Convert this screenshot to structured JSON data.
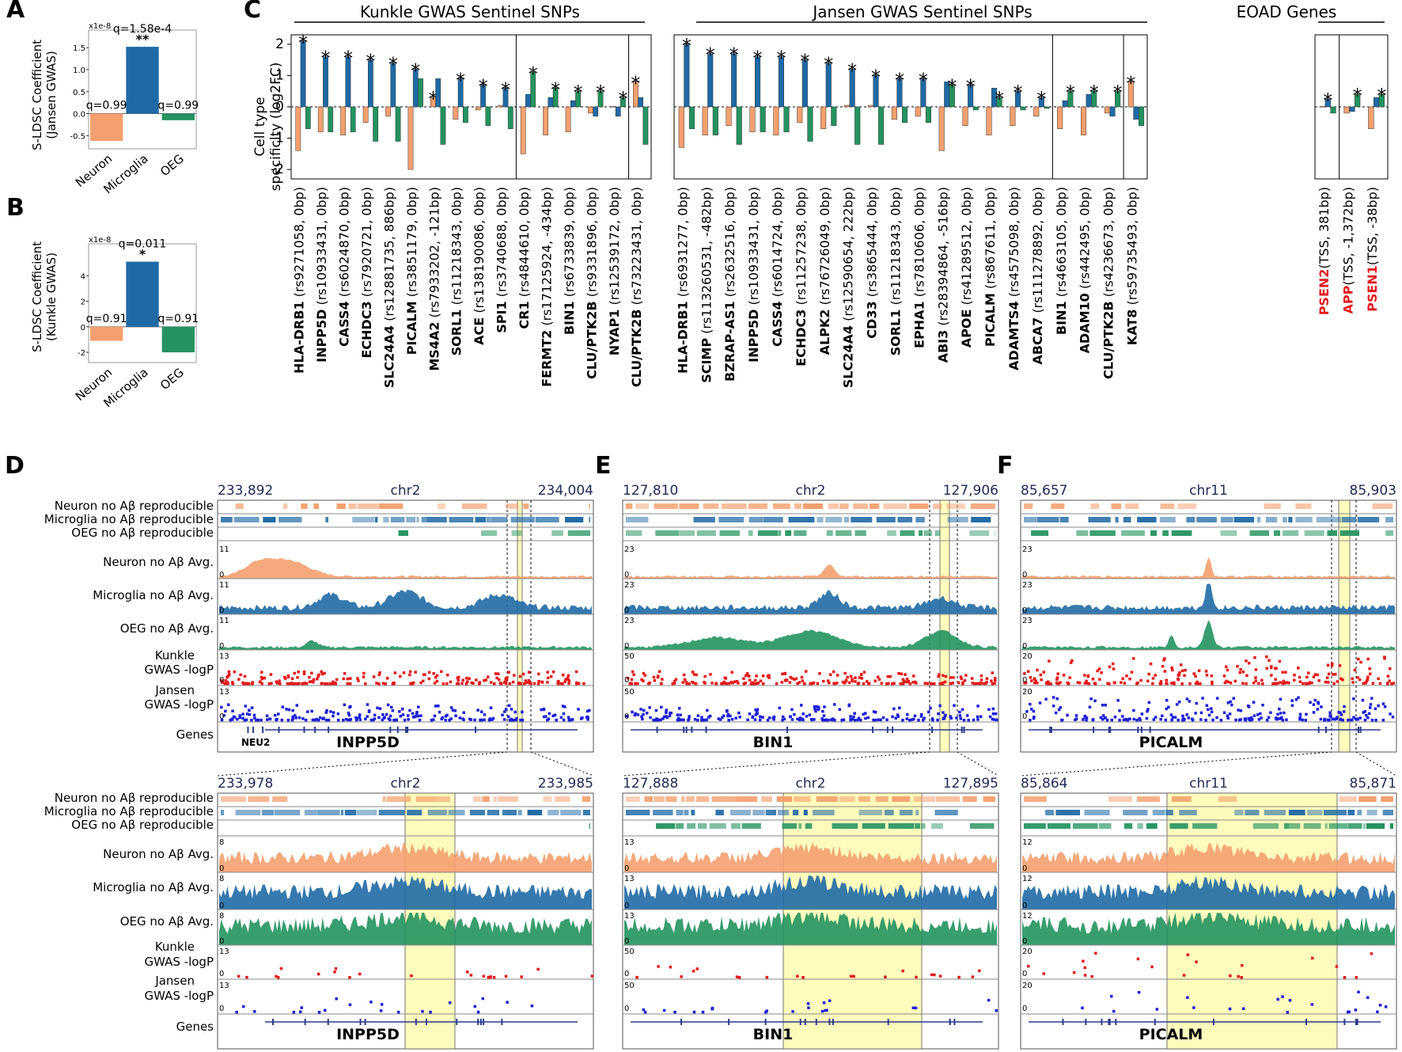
{
  "colors": {
    "neuron": "#f4a06e",
    "microglia": "#1f6aa5",
    "oeg": "#23935f",
    "kunkle": "#e31a1c",
    "jansen": "#1f1fd6",
    "highlight": "#fffbbd",
    "red_text": "#e31a1c"
  },
  "panels": {
    "a": "A",
    "b": "B",
    "c": "C",
    "d": "D",
    "e": "E",
    "f": "F"
  },
  "panel_a": {
    "scale_label": "x1e-8",
    "ylabel_line1": "S-LDSC Coefficient",
    "ylabel_line2": "(Jansen GWAS)",
    "ticks": [
      "1.5",
      "1.0",
      "0.5",
      "0.0",
      "-0.5"
    ]
  },
  "panel_b": {
    "scale_label": "x1e-8",
    "ylabel_line1": "S-LDSC Coefficient",
    "ylabel_line2": "(Kunkle GWAS)",
    "ticks": [
      "4",
      "2",
      "0",
      "-2"
    ]
  },
  "panel_c": {
    "ylabel_line1": "Cell type",
    "ylabel_line2": "specificity (log2FC)",
    "ticks": [
      "2",
      "1",
      "0",
      "-1",
      "-2"
    ],
    "header_kunkle": "Kunkle GWAS Sentinel SNPs",
    "header_jansen": "Jansen GWAS Sentinel SNPs",
    "header_eoad": "EOAD Genes"
  },
  "tracks": {
    "neuron_rep": "Neuron no Aβ reproducible",
    "microglia_rep": "Microglia no Aβ reproducible",
    "oeg_rep": "OEG no Aβ reproducible",
    "neuron_avg": "Neuron no Aβ Avg.",
    "microglia_avg": "Microglia no Aβ Avg.",
    "oeg_avg": "OEG no Aβ Avg.",
    "kunkle_l1": "Kunkle",
    "kunkle_l2": "GWAS -logP",
    "jansen_l1": "Jansen",
    "jansen_l2": "GWAS -logP",
    "genes": "Genes"
  },
  "browser": {
    "d": {
      "chrom": "chr2",
      "start": "233,892",
      "end": "234,004",
      "zoom_start": "233,978",
      "zoom_end": "233,985",
      "scale_avg": "11",
      "scale_zoom_avg": "8",
      "scale_gwas": "13",
      "scale_zoom_gwas": "13",
      "gene_main": "INPP5D",
      "gene_extra": "NEU2",
      "zero": "0"
    },
    "e": {
      "chrom": "chr2",
      "start": "127,810",
      "end": "127,906",
      "zoom_start": "127,888",
      "zoom_end": "127,895",
      "scale_avg": "23",
      "scale_zoom_avg": "13",
      "scale_gwas": "50",
      "scale_zoom_gwas": "50",
      "gene_main": "BIN1",
      "zero": "0"
    },
    "f": {
      "chrom": "chr11",
      "start": "85,657",
      "end": "85,903",
      "zoom_start": "85,864",
      "zoom_end": "85,871",
      "scale_avg": "23",
      "scale_zoom_avg": "12",
      "scale_gwas": "20",
      "scale_zoom_gwas": "20",
      "zero": "0",
      "gene_main": "PICALM"
    }
  },
  "chart_data": [
    {
      "id": "A",
      "type": "bar",
      "title": "",
      "ylabel": "S-LDSC Coefficient (Jansen GWAS)",
      "y_scale_note": "x1e-8",
      "categories": [
        "Neuron",
        "Microglia",
        "OEG"
      ],
      "values": [
        -0.62,
        1.52,
        -0.15
      ],
      "annotations": [
        "q=0.99",
        "q=1.58e-4",
        "q=0.99"
      ],
      "stars": [
        "",
        "**",
        ""
      ],
      "ylim": [
        -0.8,
        1.9
      ],
      "yticks": [
        -0.5,
        0.0,
        0.5,
        1.0,
        1.5
      ]
    },
    {
      "id": "B",
      "type": "bar",
      "title": "",
      "ylabel": "S-LDSC Coefficient (Kunkle GWAS)",
      "y_scale_note": "x1e-8",
      "categories": [
        "Neuron",
        "Microglia",
        "OEG"
      ],
      "values": [
        -1.1,
        5.1,
        -2.0
      ],
      "annotations": [
        "q=0.91",
        "q=0.011",
        "q=0.91"
      ],
      "stars": [
        "",
        "*",
        ""
      ],
      "ylim": [
        -2.8,
        6.5
      ],
      "yticks": [
        -2,
        0,
        2,
        4
      ]
    },
    {
      "id": "C",
      "type": "bar",
      "ylabel": "Cell type specificity (log2FC)",
      "ylim": [
        -2.3,
        2.3
      ],
      "yticks": [
        -2,
        -1,
        0,
        1,
        2
      ],
      "series_names": [
        "Neuron",
        "Microglia",
        "OEG"
      ],
      "groups": [
        {
          "section": "Kunkle",
          "snps": [
            {
              "gene": "HLA-DRB1",
              "snp": " (rs9271058, 0bp)",
              "red": false,
              "values": [
                -1.4,
                2.1,
                -0.7
              ],
              "star": 1
            },
            {
              "gene": "INPP5D",
              "snp": " (rs10933431, 0bp)",
              "red": false,
              "values": [
                -0.8,
                1.6,
                -0.8
              ],
              "star": 1
            },
            {
              "gene": "CASS4",
              "snp": " (rs6024870, 0bp)",
              "red": false,
              "values": [
                -0.9,
                1.6,
                -0.8
              ],
              "star": 1
            },
            {
              "gene": "ECHDC3",
              "snp": " (rs7920721, 0bp)",
              "red": false,
              "values": [
                -0.5,
                1.5,
                -1.1
              ],
              "star": 1
            },
            {
              "gene": "SLC24A4",
              "snp": " (rs12881735, 886bp)",
              "red": false,
              "values": [
                -0.3,
                1.4,
                -1.1
              ],
              "star": 1
            },
            {
              "gene": "PICALM",
              "snp": " (rs3851179, 0bp)",
              "red": false,
              "values": [
                -2.0,
                1.2,
                0.9
              ],
              "star": 1
            },
            {
              "gene": "MS4A2",
              "snp": " (rs7933202, -121bp)",
              "red": false,
              "values": [
                0.3,
                0.9,
                -1.2
              ],
              "star": 0
            },
            {
              "gene": "SORL1",
              "snp": " (rs11218343, 0bp)",
              "red": false,
              "values": [
                -0.4,
                0.9,
                -0.5
              ],
              "star": 1
            },
            {
              "gene": "ACE",
              "snp": " (rs138190086, 0bp)",
              "red": false,
              "values": [
                -0.1,
                0.7,
                -0.6
              ],
              "star": 1
            },
            {
              "gene": "SPI1",
              "snp": " (rs3740688, 0bp)",
              "red": false,
              "values": [
                0.05,
                0.6,
                -0.7
              ],
              "star": 1
            }
          ]
        },
        {
          "section": "Kunkle",
          "snps": [
            {
              "gene": "CR1",
              "snp": " (rs4844610, 0bp)",
              "red": false,
              "values": [
                -1.5,
                0.4,
                1.1
              ],
              "star": 2
            },
            {
              "gene": "FERMT2",
              "snp": " (rs17125924, -434bp)",
              "red": false,
              "values": [
                -0.9,
                0.3,
                0.6
              ],
              "star": 2
            },
            {
              "gene": "BIN1",
              "snp": " (rs6733839, 0bp)",
              "red": false,
              "values": [
                -0.8,
                0.2,
                0.5
              ],
              "star": 2
            },
            {
              "gene": "CLU/PTK2B",
              "snp": " (rs9331896, 0bp)",
              "red": false,
              "values": [
                -0.2,
                -0.3,
                0.5
              ],
              "star": 2
            },
            {
              "gene": "NYAP1",
              "snp": " (rs12539172, 0bp)",
              "red": false,
              "values": [
                0.02,
                -0.3,
                0.3
              ],
              "star": 2
            }
          ]
        },
        {
          "section": "Kunkle",
          "snps": [
            {
              "gene": "CLU/PTK2B",
              "snp": " (rs73223431, 0bp)",
              "red": false,
              "values": [
                0.8,
                0.3,
                -1.2
              ],
              "star": 0
            }
          ]
        },
        {
          "section": "Jansen",
          "snps": [
            {
              "gene": "HLA-DRB1",
              "snp": " (rs6931277, 0bp)",
              "red": false,
              "values": [
                -1.3,
                2.0,
                -0.7
              ],
              "star": 1
            },
            {
              "gene": "SCIMP",
              "snp": " (rs113260531, -482bp)",
              "red": false,
              "values": [
                -0.9,
                1.7,
                -0.9
              ],
              "star": 1
            },
            {
              "gene": "BZRAP-AS1",
              "snp": " (rs2632516, 0bp)",
              "red": false,
              "values": [
                -0.6,
                1.7,
                -1.2
              ],
              "star": 1
            },
            {
              "gene": "INPP5D",
              "snp": " (rs10933431, 0bp)",
              "red": false,
              "values": [
                -0.8,
                1.6,
                -0.8
              ],
              "star": 1
            },
            {
              "gene": "CASS4",
              "snp": " (rs6014724, 0bp)",
              "red": false,
              "values": [
                -0.9,
                1.6,
                -0.8
              ],
              "star": 1
            },
            {
              "gene": "ECHDC3",
              "snp": " (rs11257238, 0bp)",
              "red": false,
              "values": [
                -0.5,
                1.5,
                -1.1
              ],
              "star": 1
            },
            {
              "gene": "ALPK2",
              "snp": " (rs76726049, 0bp)",
              "red": false,
              "values": [
                -0.7,
                1.4,
                -0.6
              ],
              "star": 1
            },
            {
              "gene": "SLC24A4",
              "snp": " (rs12590654, 222bp)",
              "red": false,
              "values": [
                0.05,
                1.2,
                -1.2
              ],
              "star": 1
            },
            {
              "gene": "CD33",
              "snp": " (rs3865444, 0bp)",
              "red": false,
              "values": [
                0.05,
                1.0,
                -1.2
              ],
              "star": 1
            },
            {
              "gene": "SORL1",
              "snp": " (rs11218343, 0bp)",
              "red": false,
              "values": [
                -0.4,
                0.9,
                -0.5
              ],
              "star": 1
            },
            {
              "gene": "EPHA1",
              "snp": " (rs7810606, 0bp)",
              "red": false,
              "values": [
                -0.3,
                0.9,
                -0.5
              ],
              "star": 1
            },
            {
              "gene": "ABI3",
              "snp": " (rs28394864, -516bp)",
              "red": false,
              "values": [
                -1.4,
                0.8,
                0.7
              ],
              "star": 2
            },
            {
              "gene": "APOE",
              "snp": " (rs41289512, 0bp)",
              "red": false,
              "values": [
                -0.6,
                0.7,
                -0.1
              ],
              "star": 1
            },
            {
              "gene": "PICALM",
              "snp": " (rs867611, 0bp)",
              "red": false,
              "values": [
                -0.9,
                0.6,
                0.3
              ],
              "star": 2
            },
            {
              "gene": "ADAMTS4",
              "snp": " (rs4575098, 0bp)",
              "red": false,
              "values": [
                -0.6,
                0.5,
                -0.1
              ],
              "star": 1
            },
            {
              "gene": "ABCA7",
              "snp": " (rs111278892, 0bp)",
              "red": false,
              "values": [
                -0.3,
                0.3,
                -0.05
              ],
              "star": 1
            }
          ]
        },
        {
          "section": "Jansen",
          "snps": [
            {
              "gene": "BIN1",
              "snp": " (rs4663105, 0bp)",
              "red": false,
              "values": [
                -0.7,
                0.2,
                0.5
              ],
              "star": 2
            },
            {
              "gene": "ADAM10",
              "snp": " (rs442495, 0bp)",
              "red": false,
              "values": [
                -0.9,
                0.4,
                0.5
              ],
              "star": 2
            },
            {
              "gene": "CLU/PTK2B",
              "snp": " (rs4236673, 0bp)",
              "red": false,
              "values": [
                -0.2,
                -0.3,
                0.5
              ],
              "star": 2
            }
          ]
        },
        {
          "section": "Jansen",
          "snps": [
            {
              "gene": "KAT8",
              "snp": " (rs59735493, 0bp)",
              "red": false,
              "values": [
                0.8,
                -0.4,
                -0.6
              ],
              "star": 0
            }
          ]
        },
        {
          "section": "EOAD",
          "snps": [
            {
              "gene": "PSEN2",
              "snp": "(TSS, 381bp)",
              "red": true,
              "values": [
                0.02,
                0.25,
                -0.2
              ],
              "star": 1
            }
          ]
        },
        {
          "section": "EOAD",
          "snps": [
            {
              "gene": "APP",
              "snp": "(TSS, -1,372bp)",
              "red": true,
              "values": [
                -0.2,
                -0.15,
                0.4
              ],
              "star": 2
            },
            {
              "gene": "PSEN1",
              "snp": "(TSS, -38bp)",
              "red": true,
              "values": [
                -0.7,
                0.3,
                0.4
              ],
              "star": 2
            }
          ]
        }
      ]
    }
  ]
}
